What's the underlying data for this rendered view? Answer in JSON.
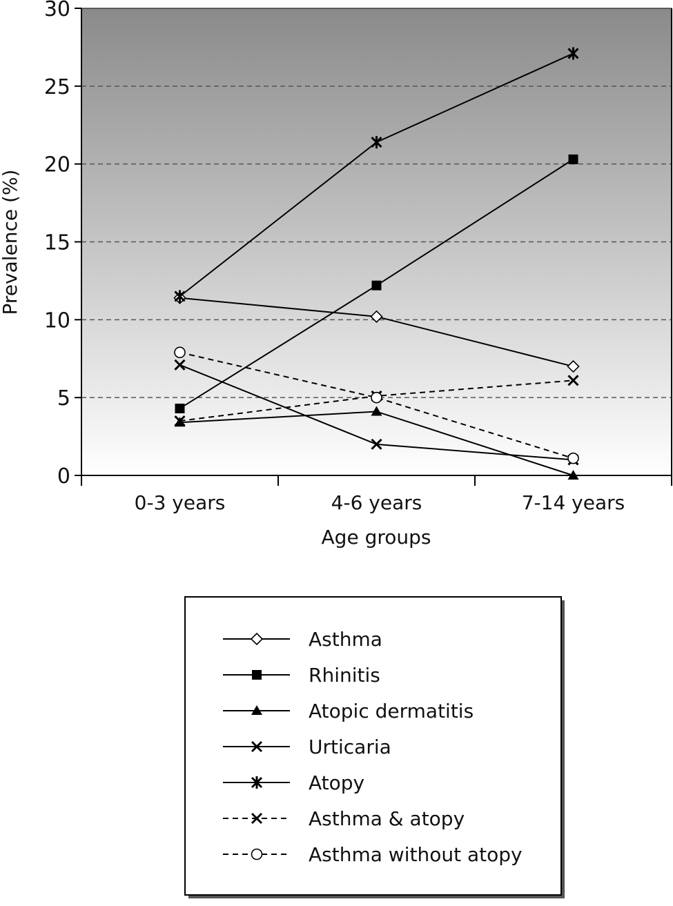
{
  "chart_data": {
    "type": "line",
    "xlabel": "Age groups",
    "ylabel": "Prevalence (%)",
    "ylim": [
      0,
      30
    ],
    "yticks": [
      0,
      5,
      10,
      15,
      20,
      25,
      30
    ],
    "categories": [
      "0-3 years",
      "4-6 years",
      "7-14 years"
    ],
    "grid": "horizontal dashed",
    "legend_position": "bottom",
    "series": [
      {
        "name": "Asthma",
        "values": [
          11.4,
          10.2,
          7.0
        ],
        "marker": "diamond-open",
        "line": "solid"
      },
      {
        "name": "Rhinitis",
        "values": [
          4.3,
          12.2,
          20.3
        ],
        "marker": "square-filled",
        "line": "solid"
      },
      {
        "name": "Atopic dermatitis",
        "values": [
          3.4,
          4.1,
          0.0
        ],
        "marker": "triangle-filled",
        "line": "solid"
      },
      {
        "name": "Urticaria",
        "values": [
          7.1,
          2.0,
          1.0
        ],
        "marker": "x",
        "line": "solid"
      },
      {
        "name": "Atopy",
        "values": [
          11.5,
          21.4,
          27.1
        ],
        "marker": "asterisk",
        "line": "solid"
      },
      {
        "name": "Asthma & atopy",
        "values": [
          3.5,
          5.1,
          6.1
        ],
        "marker": "x",
        "line": "dashed"
      },
      {
        "name": "Asthma without atopy",
        "values": [
          7.9,
          5.0,
          1.1
        ],
        "marker": "circle-open",
        "line": "dashed"
      }
    ]
  }
}
